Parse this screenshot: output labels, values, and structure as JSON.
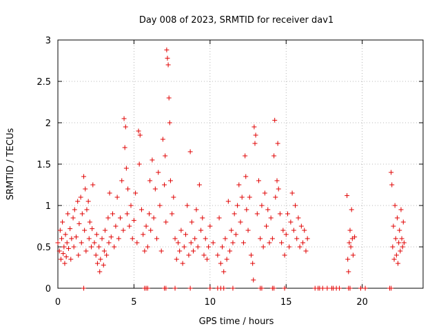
{
  "chart_data": {
    "type": "scatter",
    "title": "Day 008 of 2023, SRMTID for receiver dav1",
    "xlabel": "GPS time / hours",
    "ylabel": "SRMTID / TECUs",
    "xlim": [
      0,
      24
    ],
    "ylim": [
      0,
      3
    ],
    "xticks": [
      0,
      5,
      10,
      15,
      20
    ],
    "yticks": [
      0,
      0.5,
      1,
      1.5,
      2,
      2.5,
      3
    ],
    "xtick_labels": [
      "0",
      "5",
      "10",
      "15",
      "20"
    ],
    "ytick_labels": [
      "0",
      "0.5",
      "1",
      "1.5",
      "2",
      "2.5",
      "3"
    ],
    "grid": true,
    "marker": "plus",
    "color": "#e00000",
    "series": [
      {
        "name": "SRMTID",
        "points": [
          [
            0.0,
            0.55
          ],
          [
            0.1,
            0.45
          ],
          [
            0.15,
            0.7
          ],
          [
            0.2,
            0.35
          ],
          [
            0.25,
            0.6
          ],
          [
            0.3,
            0.8
          ],
          [
            0.35,
            0.42
          ],
          [
            0.4,
            0.5
          ],
          [
            0.45,
            0.3
          ],
          [
            0.5,
            0.65
          ],
          [
            0.55,
            0.38
          ],
          [
            0.6,
            0.55
          ],
          [
            0.65,
            0.9
          ],
          [
            0.7,
            0.48
          ],
          [
            0.8,
            0.72
          ],
          [
            0.85,
            0.35
          ],
          [
            0.9,
            0.6
          ],
          [
            1.0,
            0.85
          ],
          [
            1.05,
            0.5
          ],
          [
            1.1,
            0.95
          ],
          [
            1.2,
            0.62
          ],
          [
            1.3,
            1.05
          ],
          [
            1.35,
            0.4
          ],
          [
            1.4,
            0.78
          ],
          [
            1.5,
            1.1
          ],
          [
            1.55,
            0.55
          ],
          [
            1.6,
            0.9
          ],
          [
            1.7,
            1.35
          ],
          [
            1.75,
            0.7
          ],
          [
            1.8,
            1.2
          ],
          [
            1.85,
            0.45
          ],
          [
            1.9,
            0.95
          ],
          [
            2.0,
            1.05
          ],
          [
            2.05,
            0.6
          ],
          [
            2.1,
            0.8
          ],
          [
            2.2,
            0.5
          ],
          [
            2.25,
            0.72
          ],
          [
            2.3,
            1.25
          ],
          [
            2.4,
            0.55
          ],
          [
            2.5,
            0.4
          ],
          [
            2.55,
            0.65
          ],
          [
            2.6,
            0.3
          ],
          [
            2.7,
            0.5
          ],
          [
            2.75,
            0.2
          ],
          [
            2.8,
            0.35
          ],
          [
            2.9,
            0.6
          ],
          [
            3.0,
            0.28
          ],
          [
            3.05,
            0.45
          ],
          [
            3.1,
            0.7
          ],
          [
            3.2,
            0.4
          ],
          [
            3.3,
            0.85
          ],
          [
            3.35,
            0.55
          ],
          [
            3.4,
            1.15
          ],
          [
            3.5,
            0.62
          ],
          [
            3.6,
            0.9
          ],
          [
            3.7,
            0.5
          ],
          [
            3.8,
            0.75
          ],
          [
            3.9,
            1.1
          ],
          [
            4.0,
            0.6
          ],
          [
            4.1,
            0.85
          ],
          [
            4.2,
            1.3
          ],
          [
            4.3,
            0.7
          ],
          [
            4.35,
            2.05
          ],
          [
            4.4,
            1.7
          ],
          [
            4.45,
            1.95
          ],
          [
            4.5,
            1.45
          ],
          [
            4.55,
            0.9
          ],
          [
            4.6,
            1.2
          ],
          [
            4.7,
            0.75
          ],
          [
            4.8,
            1.0
          ],
          [
            4.9,
            0.6
          ],
          [
            5.0,
            0.82
          ],
          [
            5.1,
            1.15
          ],
          [
            5.2,
            0.55
          ],
          [
            5.3,
            1.9
          ],
          [
            5.35,
            1.5
          ],
          [
            5.4,
            1.85
          ],
          [
            5.5,
            0.95
          ],
          [
            5.6,
            0.65
          ],
          [
            5.7,
            0.45
          ],
          [
            5.8,
            0.75
          ],
          [
            5.9,
            0.5
          ],
          [
            6.0,
            0.9
          ],
          [
            6.05,
            1.3
          ],
          [
            6.1,
            0.7
          ],
          [
            6.2,
            1.55
          ],
          [
            6.3,
            0.85
          ],
          [
            6.4,
            1.2
          ],
          [
            6.5,
            0.6
          ],
          [
            6.6,
            1.4
          ],
          [
            6.7,
            1.0
          ],
          [
            6.8,
            0.45
          ],
          [
            6.9,
            1.8
          ],
          [
            7.0,
            1.25
          ],
          [
            7.05,
            1.6
          ],
          [
            7.1,
            0.8
          ],
          [
            7.15,
            2.88
          ],
          [
            7.2,
            2.78
          ],
          [
            7.25,
            2.7
          ],
          [
            7.3,
            2.3
          ],
          [
            7.35,
            2.0
          ],
          [
            7.4,
            1.3
          ],
          [
            7.5,
            0.9
          ],
          [
            7.6,
            1.1
          ],
          [
            7.7,
            0.6
          ],
          [
            7.8,
            0.35
          ],
          [
            7.9,
            0.55
          ],
          [
            8.0,
            0.45
          ],
          [
            8.1,
            0.7
          ],
          [
            8.2,
            0.3
          ],
          [
            8.3,
            0.5
          ],
          [
            8.4,
            0.65
          ],
          [
            8.5,
            1.0
          ],
          [
            8.6,
            0.4
          ],
          [
            8.7,
            1.65
          ],
          [
            8.75,
            0.55
          ],
          [
            8.8,
            0.8
          ],
          [
            8.9,
            0.45
          ],
          [
            9.0,
            0.6
          ],
          [
            9.1,
            0.95
          ],
          [
            9.2,
            0.5
          ],
          [
            9.3,
            1.25
          ],
          [
            9.4,
            0.7
          ],
          [
            9.5,
            0.85
          ],
          [
            9.6,
            0.4
          ],
          [
            9.7,
            0.6
          ],
          [
            9.8,
            0.35
          ],
          [
            9.9,
            0.5
          ],
          [
            10.0,
            0.75
          ],
          [
            10.2,
            0.55
          ],
          [
            10.5,
            0.4
          ],
          [
            10.6,
            0.85
          ],
          [
            10.7,
            0.3
          ],
          [
            10.8,
            0.5
          ],
          [
            10.9,
            0.2
          ],
          [
            11.0,
            0.6
          ],
          [
            11.1,
            0.35
          ],
          [
            11.2,
            1.05
          ],
          [
            11.3,
            0.45
          ],
          [
            11.4,
            0.7
          ],
          [
            11.5,
            0.55
          ],
          [
            11.6,
            0.9
          ],
          [
            11.7,
            0.65
          ],
          [
            11.8,
            1.0
          ],
          [
            11.9,
            1.25
          ],
          [
            12.0,
            0.8
          ],
          [
            12.1,
            1.1
          ],
          [
            12.2,
            0.55
          ],
          [
            12.3,
            1.6
          ],
          [
            12.35,
            1.35
          ],
          [
            12.4,
            0.95
          ],
          [
            12.5,
            0.7
          ],
          [
            12.6,
            1.1
          ],
          [
            12.7,
            0.4
          ],
          [
            12.8,
            0.3
          ],
          [
            12.85,
            0.1
          ],
          [
            12.9,
            1.95
          ],
          [
            12.95,
            1.75
          ],
          [
            13.0,
            1.85
          ],
          [
            13.1,
            0.9
          ],
          [
            13.2,
            1.3
          ],
          [
            13.3,
            0.6
          ],
          [
            13.4,
            1.0
          ],
          [
            13.5,
            0.5
          ],
          [
            13.6,
            1.15
          ],
          [
            13.7,
            0.75
          ],
          [
            13.8,
            0.95
          ],
          [
            13.9,
            0.55
          ],
          [
            14.0,
            0.85
          ],
          [
            14.1,
            0.6
          ],
          [
            14.2,
            1.6
          ],
          [
            14.25,
            2.03
          ],
          [
            14.3,
            1.1
          ],
          [
            14.4,
            1.3
          ],
          [
            14.45,
            1.75
          ],
          [
            14.5,
            1.2
          ],
          [
            14.6,
            0.9
          ],
          [
            14.7,
            0.55
          ],
          [
            14.8,
            0.7
          ],
          [
            14.9,
            0.4
          ],
          [
            15.0,
            0.65
          ],
          [
            15.1,
            0.9
          ],
          [
            15.2,
            0.5
          ],
          [
            15.3,
            0.8
          ],
          [
            15.4,
            1.15
          ],
          [
            15.5,
            0.7
          ],
          [
            15.6,
            1.0
          ],
          [
            15.7,
            0.6
          ],
          [
            15.8,
            0.85
          ],
          [
            15.9,
            0.5
          ],
          [
            16.0,
            0.75
          ],
          [
            16.1,
            0.55
          ],
          [
            16.2,
            0.7
          ],
          [
            16.3,
            0.45
          ],
          [
            16.4,
            0.6
          ],
          [
            19.0,
            1.12
          ],
          [
            19.05,
            0.35
          ],
          [
            19.1,
            0.2
          ],
          [
            19.15,
            0.55
          ],
          [
            19.2,
            0.7
          ],
          [
            19.25,
            0.5
          ],
          [
            19.3,
            0.95
          ],
          [
            19.35,
            0.6
          ],
          [
            19.4,
            0.4
          ],
          [
            19.5,
            0.62
          ],
          [
            21.9,
            1.4
          ],
          [
            21.95,
            1.25
          ],
          [
            22.0,
            0.5
          ],
          [
            22.05,
            0.75
          ],
          [
            22.1,
            0.35
          ],
          [
            22.15,
            1.0
          ],
          [
            22.2,
            0.6
          ],
          [
            22.25,
            0.4
          ],
          [
            22.3,
            0.85
          ],
          [
            22.35,
            0.3
          ],
          [
            22.4,
            0.55
          ],
          [
            22.45,
            0.7
          ],
          [
            22.5,
            0.45
          ],
          [
            22.55,
            0.95
          ],
          [
            22.6,
            0.6
          ],
          [
            22.65,
            0.5
          ],
          [
            22.7,
            0.8
          ],
          [
            22.75,
            0.55
          ],
          [
            1.7,
            0.0
          ],
          [
            5.7,
            0.0
          ],
          [
            5.8,
            0.0
          ],
          [
            5.9,
            0.0
          ],
          [
            7.0,
            0.0
          ],
          [
            7.1,
            0.0
          ],
          [
            7.7,
            0.0
          ],
          [
            8.7,
            0.0
          ],
          [
            10.0,
            0.0
          ],
          [
            10.5,
            0.0
          ],
          [
            10.7,
            0.0
          ],
          [
            10.9,
            0.0
          ],
          [
            11.5,
            0.0
          ],
          [
            13.3,
            0.0
          ],
          [
            13.4,
            0.0
          ],
          [
            14.1,
            0.0
          ],
          [
            14.2,
            0.0
          ],
          [
            14.9,
            0.0
          ],
          [
            16.9,
            0.0
          ],
          [
            17.1,
            0.0
          ],
          [
            17.2,
            0.0
          ],
          [
            17.4,
            0.0
          ],
          [
            17.7,
            0.0
          ],
          [
            18.0,
            0.0
          ],
          [
            18.1,
            0.0
          ],
          [
            18.3,
            0.0
          ],
          [
            18.5,
            0.0
          ],
          [
            19.1,
            0.0
          ],
          [
            19.2,
            0.0
          ],
          [
            19.9,
            0.0
          ],
          [
            20.2,
            0.0
          ],
          [
            21.8,
            0.0
          ],
          [
            21.9,
            0.0
          ]
        ]
      }
    ]
  }
}
